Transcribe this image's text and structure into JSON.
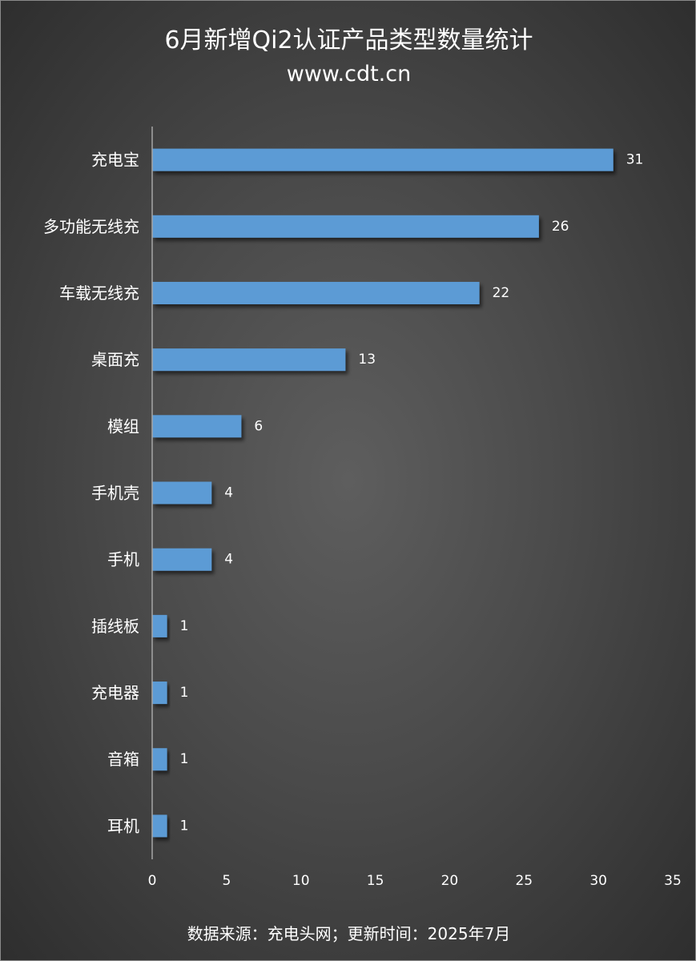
{
  "chart_data": {
    "type": "bar",
    "orientation": "horizontal",
    "title": "6月新增Qi2认证产品类型数量统计",
    "subtitle": "www.cdt.cn",
    "categories": [
      "充电宝",
      "多功能无线充",
      "车载无线充",
      "桌面充",
      "模组",
      "手机壳",
      "手机",
      "插线板",
      "充电器",
      "音箱",
      "耳机"
    ],
    "values": [
      31,
      26,
      22,
      13,
      6,
      4,
      4,
      1,
      1,
      1,
      1
    ],
    "xlim": [
      0,
      35
    ],
    "xticks": [
      0,
      5,
      10,
      15,
      20,
      25,
      30,
      35
    ],
    "grid": false,
    "data_labels": true,
    "bar_color": "#5b9bd5",
    "footnote": "数据来源：充电头网；更新时间：2025年7月"
  }
}
